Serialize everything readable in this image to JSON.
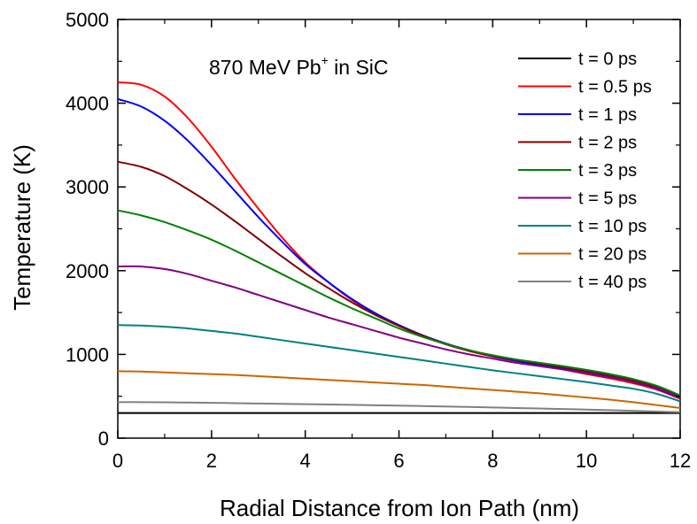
{
  "chart_data": {
    "type": "line",
    "title": "",
    "annotation": {
      "main": "870 MeV Pb",
      "superscript": "+",
      "suffix": " in SiC"
    },
    "xlabel": "Radial Distance from Ion Path (nm)",
    "ylabel": "Temperature (K)",
    "xlim": [
      0,
      12
    ],
    "ylim": [
      0,
      5000
    ],
    "xticks": [
      0,
      2,
      4,
      6,
      8,
      10,
      12
    ],
    "yticks": [
      0,
      1000,
      2000,
      3000,
      4000,
      5000
    ],
    "grid": false,
    "legend_position": "top-right",
    "x": [
      0,
      0.5,
      1,
      1.5,
      2,
      2.5,
      3,
      3.5,
      4,
      4.5,
      5,
      5.5,
      6,
      6.5,
      7,
      7.5,
      8,
      8.5,
      9,
      9.5,
      10,
      10.5,
      11,
      11.5,
      12
    ],
    "series": [
      {
        "name": "t = 0 ps",
        "color": "#000000",
        "values": [
          300,
          300,
          300,
          300,
          300,
          300,
          300,
          300,
          300,
          300,
          300,
          300,
          300,
          300,
          300,
          300,
          300,
          300,
          300,
          300,
          300,
          300,
          300,
          300,
          300
        ]
      },
      {
        "name": "t = 0.5 ps",
        "color": "#ff0000",
        "values": [
          4250,
          4220,
          4080,
          3820,
          3480,
          3100,
          2740,
          2400,
          2100,
          1860,
          1650,
          1480,
          1340,
          1220,
          1120,
          1040,
          975,
          920,
          870,
          820,
          765,
          715,
          655,
          580,
          470
        ]
      },
      {
        "name": "t = 1 ps",
        "color": "#0000ff",
        "values": [
          4050,
          3960,
          3790,
          3550,
          3260,
          2950,
          2640,
          2350,
          2080,
          1860,
          1660,
          1490,
          1350,
          1230,
          1130,
          1050,
          980,
          925,
          875,
          830,
          780,
          730,
          670,
          590,
          480
        ]
      },
      {
        "name": "t = 2 ps",
        "color": "#800000",
        "values": [
          3300,
          3240,
          3130,
          2970,
          2790,
          2590,
          2380,
          2170,
          1970,
          1790,
          1620,
          1470,
          1340,
          1225,
          1125,
          1045,
          985,
          935,
          890,
          845,
          800,
          750,
          690,
          610,
          500
        ]
      },
      {
        "name": "t = 3 ps",
        "color": "#008000",
        "values": [
          2720,
          2660,
          2580,
          2480,
          2370,
          2240,
          2100,
          1960,
          1820,
          1680,
          1550,
          1430,
          1310,
          1210,
          1125,
          1050,
          990,
          940,
          900,
          860,
          815,
          765,
          705,
          625,
          510
        ]
      },
      {
        "name": "t = 5 ps",
        "color": "#800080",
        "values": [
          2050,
          2050,
          2020,
          1960,
          1880,
          1800,
          1710,
          1620,
          1530,
          1440,
          1360,
          1280,
          1200,
          1130,
          1060,
          1000,
          950,
          900,
          860,
          820,
          775,
          725,
          670,
          595,
          485
        ]
      },
      {
        "name": "t = 10 ps",
        "color": "#008080",
        "values": [
          1350,
          1345,
          1330,
          1310,
          1280,
          1250,
          1210,
          1170,
          1130,
          1090,
          1050,
          1010,
          970,
          930,
          890,
          850,
          810,
          775,
          740,
          705,
          670,
          630,
          590,
          530,
          440
        ]
      },
      {
        "name": "t = 20 ps",
        "color": "#cc6600",
        "values": [
          800,
          795,
          785,
          775,
          765,
          755,
          740,
          725,
          710,
          695,
          680,
          665,
          650,
          635,
          615,
          595,
          575,
          555,
          535,
          510,
          485,
          460,
          430,
          395,
          360
        ]
      },
      {
        "name": "t = 40 ps",
        "color": "#808080",
        "values": [
          430,
          430,
          428,
          425,
          422,
          418,
          414,
          410,
          406,
          402,
          398,
          393,
          388,
          383,
          378,
          372,
          366,
          360,
          354,
          348,
          341,
          334,
          326,
          318,
          310
        ]
      }
    ]
  }
}
